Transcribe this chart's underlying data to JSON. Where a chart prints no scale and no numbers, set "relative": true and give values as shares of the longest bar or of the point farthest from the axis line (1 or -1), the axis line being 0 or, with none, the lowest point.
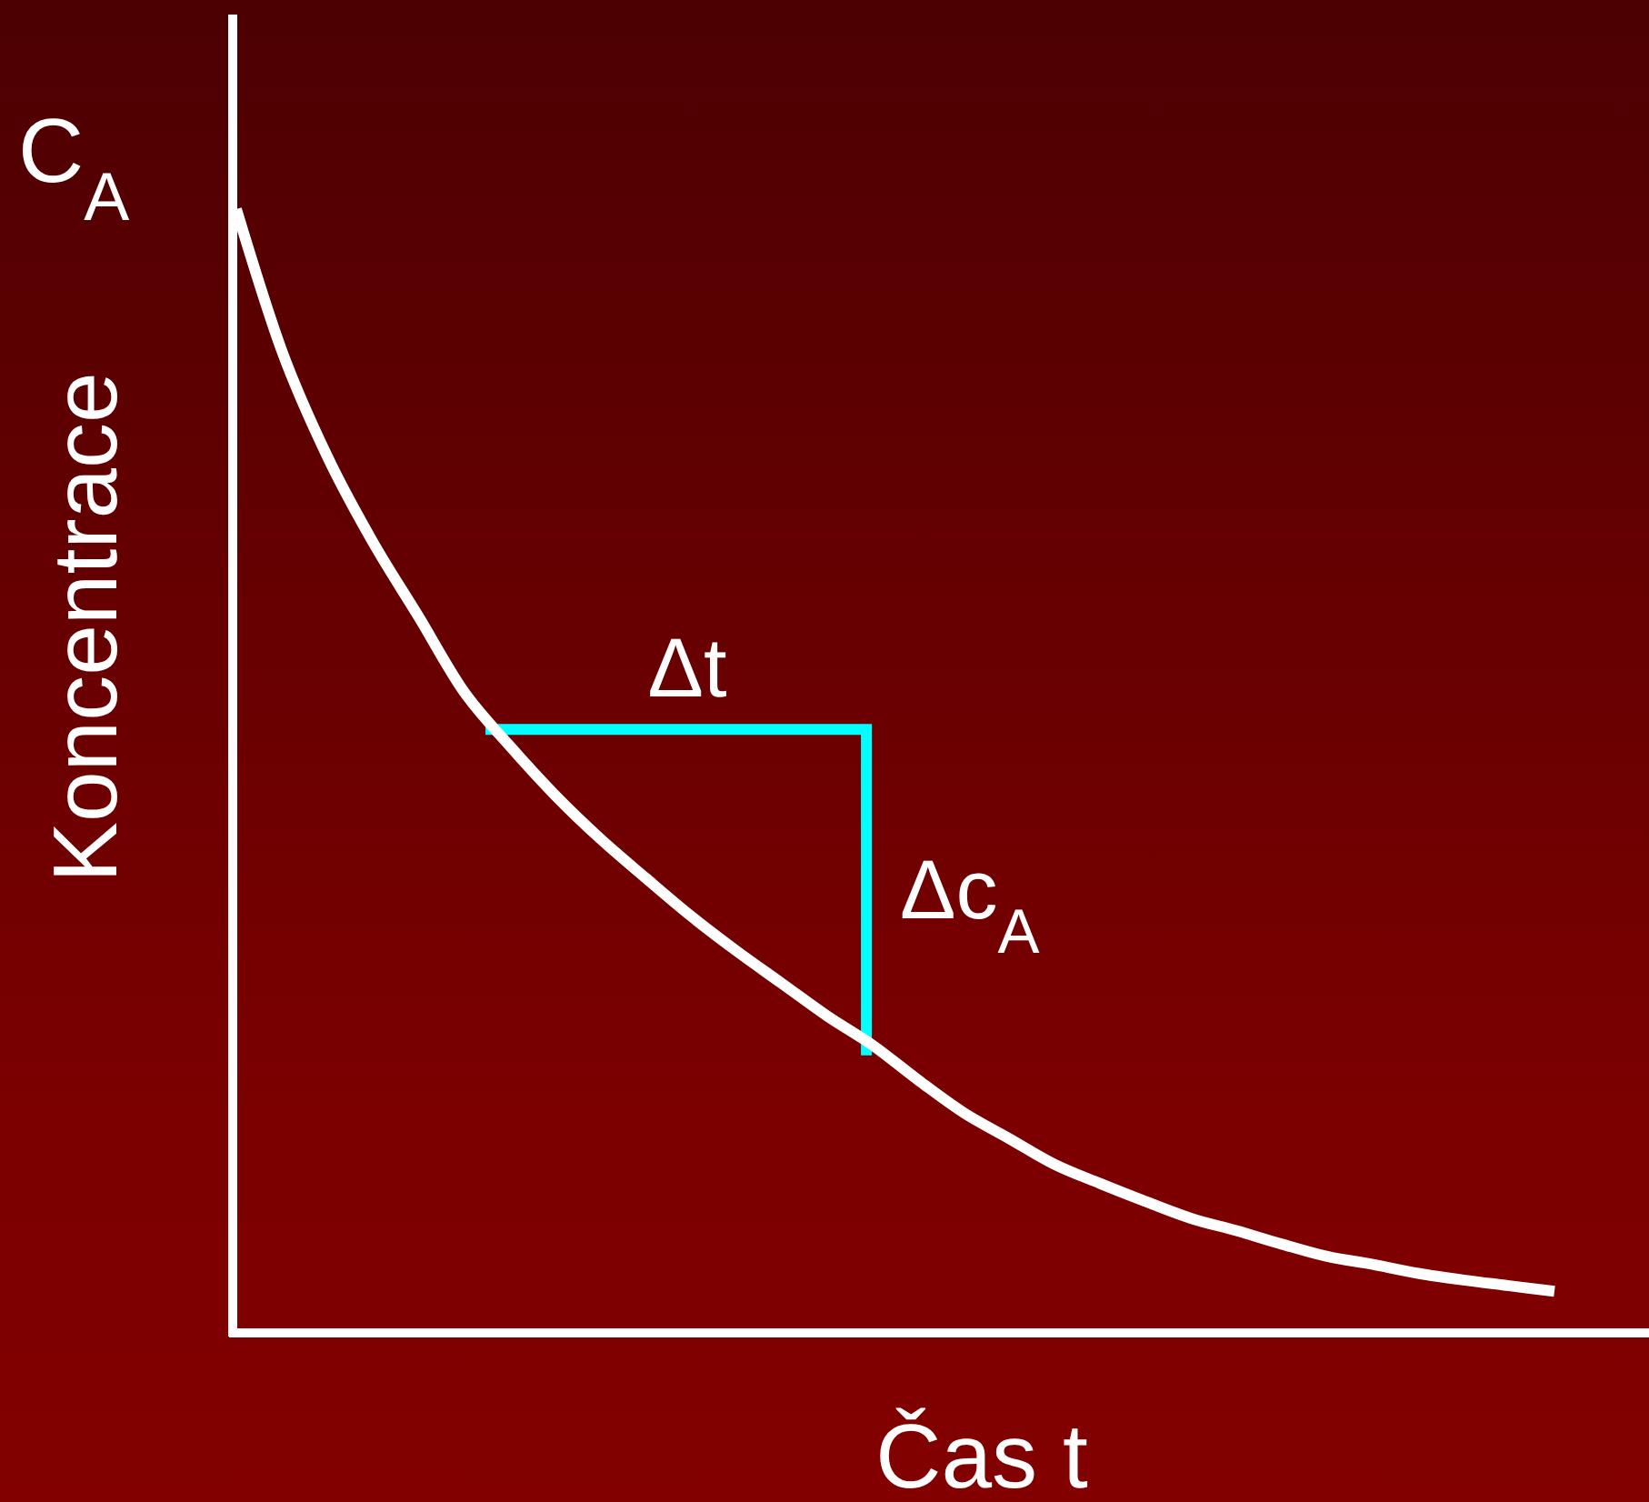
{
  "chart_data": {
    "type": "line",
    "relative": true,
    "xlabel": "Čas t",
    "ylabel": "Koncentrace",
    "annotations": [
      "C$_{A}$",
      "Δt",
      "Δc$_{A}$"
    ],
    "categories": [
      null,
      null,
      null,
      null,
      null,
      null,
      null,
      null,
      null,
      null,
      null,
      null,
      null,
      null,
      null,
      null,
      null,
      null,
      null,
      null,
      null,
      null,
      null,
      null,
      null,
      null,
      null,
      null,
      null,
      null
    ],
    "series": [
      {
        "color": "#ffffff",
        "values": [
          1.0,
          0.874,
          0.78,
          0.704,
          0.638,
          0.571,
          0.523,
          0.479,
          0.44,
          0.405,
          0.371,
          0.34,
          0.311,
          0.282,
          0.256,
          0.225,
          0.196,
          0.173,
          0.15,
          0.133,
          0.117,
          0.102,
          0.091,
          0.079,
          0.068,
          0.061,
          0.053,
          0.047,
          0.042,
          0.037
        ]
      }
    ],
    "grid": false,
    "marker": "none",
    "line_style": "solid"
  }
}
